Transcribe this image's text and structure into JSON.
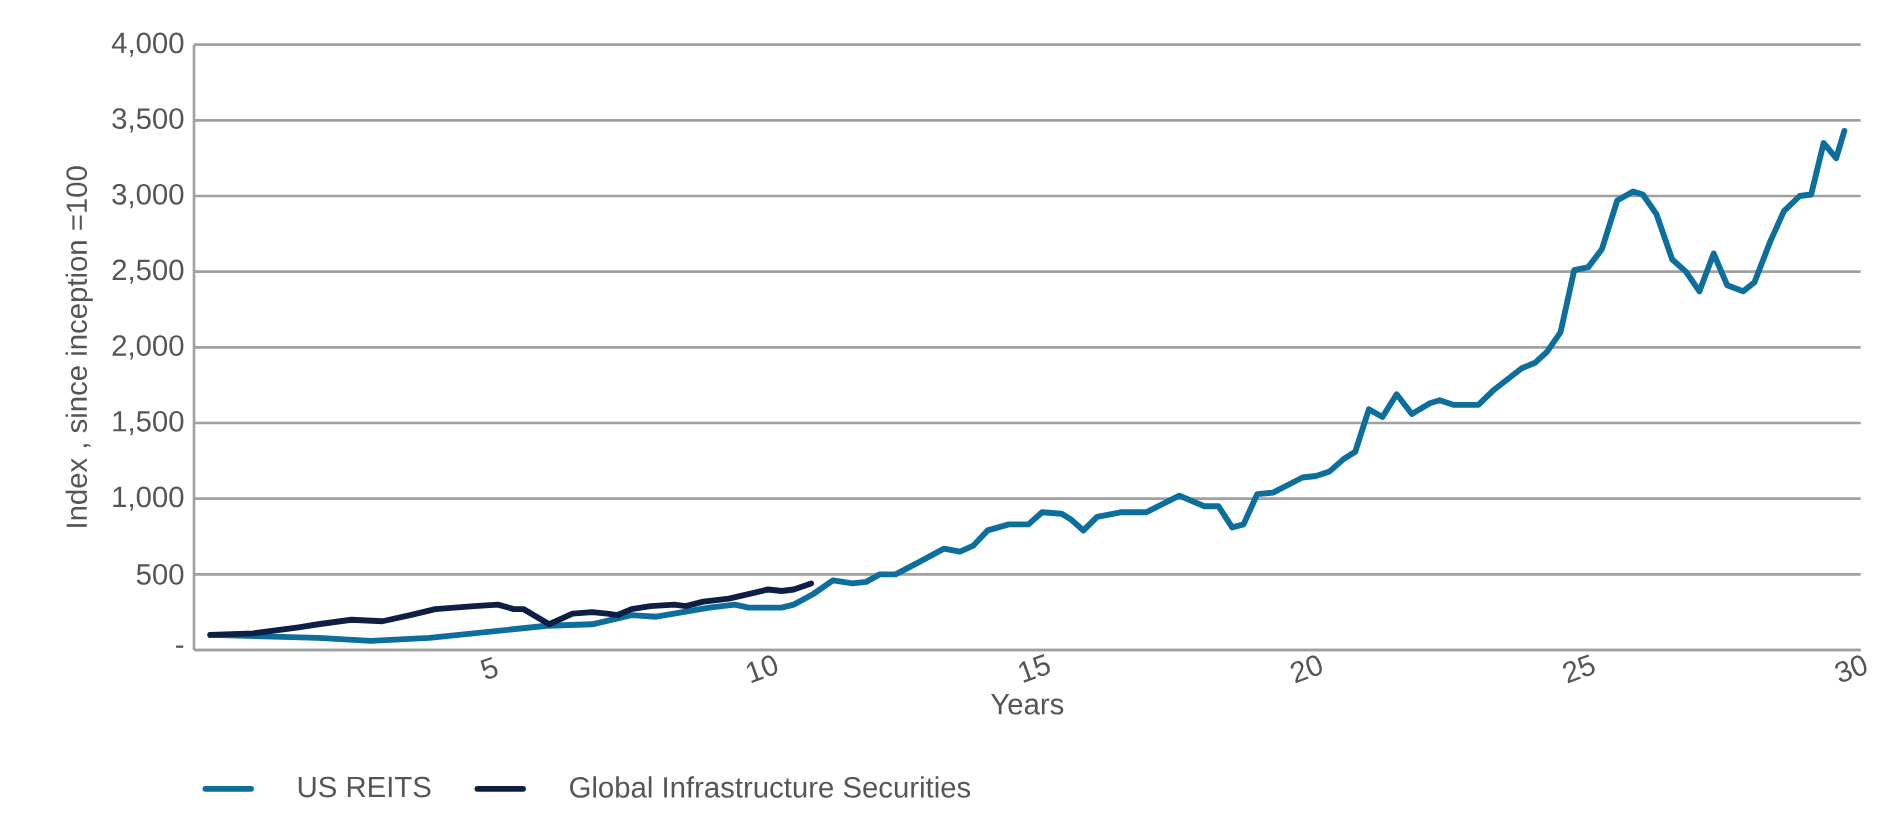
{
  "chart_data": {
    "type": "line",
    "xlabel": "Years",
    "ylabel": "Index , since inception =100",
    "xlim": [
      -0.3,
      30.3
    ],
    "xticks": [
      5,
      10,
      15,
      20,
      25,
      30
    ],
    "ylim": [
      0,
      4000
    ],
    "yticks": [
      {
        "value": 0,
        "label": "-"
      },
      500,
      {
        "value": 1000,
        "label": "1,000"
      },
      {
        "value": 1500,
        "label": "1,500"
      },
      {
        "value": 2000,
        "label": "2,000"
      },
      {
        "value": 2500,
        "label": "2,500"
      },
      {
        "value": 3000,
        "label": "3,000"
      },
      {
        "value": 3500,
        "label": "3,500"
      },
      {
        "value": 4000,
        "label": "4,000"
      }
    ],
    "grid": "y",
    "legend": "bottom",
    "line_style": "solid",
    "series": [
      {
        "name": "US REITS",
        "color": "#0b6e9c",
        "x": [
          0,
          1.98,
          2.95,
          4.02,
          5.1,
          6.18,
          7.01,
          7.73,
          8.19,
          9.16,
          9.63,
          9.88,
          10.49,
          10.71,
          11.07,
          11.43,
          11.79,
          12.04,
          12.29,
          12.58,
          13.01,
          13.47,
          13.76,
          14.01,
          14.27,
          14.66,
          15.02,
          15.27,
          15.63,
          15.81,
          16.03,
          16.28,
          16.71,
          17.18,
          17.79,
          18.25,
          18.51,
          18.76,
          18.97,
          19.22,
          19.51,
          20.05,
          20.3,
          20.55,
          20.8,
          21.02,
          21.27,
          21.52,
          21.78,
          22.06,
          22.39,
          22.57,
          22.82,
          23.28,
          23.57,
          24.07,
          24.33,
          24.54,
          24.79,
          25.04,
          25.3,
          25.55,
          25.83,
          26.12,
          26.3,
          26.55,
          26.84,
          27.09,
          27.34,
          27.6,
          27.85,
          28.14,
          28.35,
          28.64,
          28.89,
          29.18,
          29.39,
          29.62,
          29.85,
          30.0
        ],
        "values": [
          100,
          80,
          60,
          80,
          120,
          160,
          170,
          230,
          220,
          280,
          300,
          280,
          280,
          300,
          370,
          460,
          440,
          450,
          500,
          500,
          580,
          670,
          650,
          690,
          790,
          830,
          830,
          910,
          900,
          860,
          790,
          880,
          910,
          910,
          1020,
          950,
          950,
          810,
          830,
          1030,
          1040,
          1140,
          1150,
          1180,
          1260,
          1310,
          1590,
          1540,
          1690,
          1560,
          1630,
          1650,
          1620,
          1620,
          1720,
          1860,
          1900,
          1970,
          2100,
          2510,
          2530,
          2650,
          2970,
          3030,
          3010,
          2880,
          2580,
          2500,
          2370,
          2620,
          2410,
          2370,
          2430,
          2700,
          2900,
          3000,
          3010,
          3350,
          3250,
          3430
        ]
      },
      {
        "name": "Global Infrastructure Securities",
        "color": "#0e1e44",
        "x": [
          0,
          0.79,
          1.62,
          1.98,
          2.59,
          3.16,
          3.67,
          4.13,
          4.85,
          5.28,
          5.57,
          5.75,
          6.22,
          6.65,
          7.01,
          7.29,
          7.47,
          7.73,
          8.08,
          8.52,
          8.73,
          9.05,
          9.52,
          9.88,
          10.24,
          10.49,
          10.71,
          11.03
        ],
        "values": [
          100,
          110,
          150,
          170,
          200,
          190,
          230,
          270,
          290,
          300,
          270,
          270,
          170,
          240,
          250,
          240,
          230,
          270,
          290,
          300,
          290,
          320,
          340,
          370,
          400,
          390,
          400,
          440
        ]
      }
    ]
  }
}
